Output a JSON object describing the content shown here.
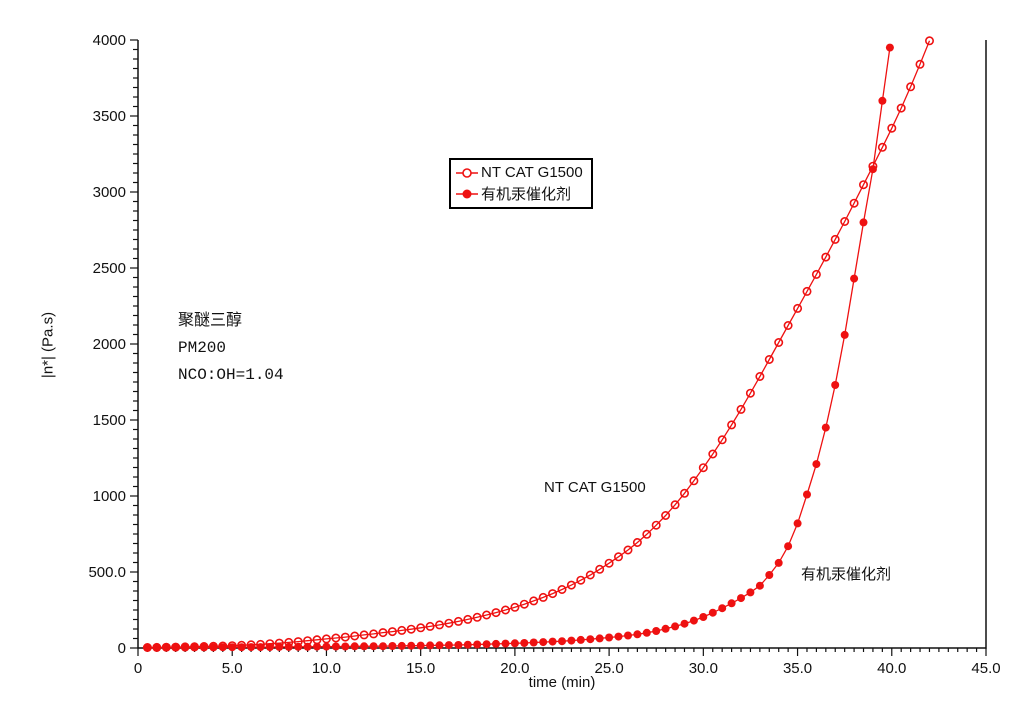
{
  "colors": {
    "series_red": "#ee1111",
    "axis_black": "#111111",
    "background": "#ffffff"
  },
  "axis": {
    "x_label": "time (min)",
    "y_label": "|n*| (Pa.s)"
  },
  "annotation": {
    "line1": "聚醚三醇",
    "line2": "PM200",
    "line3": "NCO:OH=1.04"
  },
  "legend": {
    "entries": [
      {
        "label": "NT CAT G1500",
        "marker": "open-circle"
      },
      {
        "label": "有机汞催化剂",
        "marker": "filled-circle"
      }
    ]
  },
  "curve_labels": [
    {
      "text": "NT CAT G1500"
    },
    {
      "text": "有机汞催化剂"
    }
  ],
  "chart_data": {
    "type": "line",
    "title": "",
    "xlabel": "time (min)",
    "ylabel": "|n*| (Pa.s)",
    "xlim": [
      0,
      45
    ],
    "ylim": [
      0,
      4000
    ],
    "grid": false,
    "legend_position": "upper-center",
    "x_ticks": {
      "values": [
        0,
        5,
        10,
        15,
        20,
        25,
        30,
        35,
        40,
        45
      ],
      "labels": [
        "0",
        "5.0",
        "10.0",
        "15.0",
        "20.0",
        "25.0",
        "30.0",
        "35.0",
        "40.0",
        "45.0"
      ]
    },
    "y_ticks": {
      "values": [
        0,
        500,
        1000,
        1500,
        2000,
        2500,
        3000,
        3500,
        4000
      ],
      "labels": [
        "0",
        "500.0",
        "1000",
        "1500",
        "2000",
        "2500",
        "3000",
        "3500",
        "4000"
      ]
    },
    "x_minor_per_major": 10,
    "y_minor_per_major": 8,
    "series": [
      {
        "name": "NT CAT G1500",
        "marker": "open",
        "x": [
          0.5,
          1,
          1.5,
          2,
          2.5,
          3,
          3.5,
          4,
          4.5,
          5,
          5.5,
          6,
          6.5,
          7,
          7.5,
          8,
          8.5,
          9,
          9.5,
          10,
          10.5,
          11,
          11.5,
          12,
          12.5,
          13,
          13.5,
          14,
          14.5,
          15,
          15.5,
          16,
          16.5,
          17,
          17.5,
          18,
          18.5,
          19,
          19.5,
          20,
          20.5,
          21,
          21.5,
          22,
          22.5,
          23,
          23.5,
          24,
          24.5,
          25,
          25.5,
          26,
          26.5,
          27,
          27.5,
          28,
          28.5,
          29,
          29.5,
          30,
          30.5,
          31,
          31.5,
          32,
          32.5,
          33,
          33.5,
          34,
          34.5,
          35,
          35.5,
          36,
          36.5,
          37,
          37.5,
          38,
          38.5,
          39,
          39.5,
          40,
          40.5,
          41,
          41.5,
          42
        ],
        "y": [
          3,
          4,
          5,
          6,
          7,
          8,
          10,
          11,
          13,
          15,
          18,
          21,
          24,
          28,
          32,
          37,
          42,
          48,
          54,
          60,
          66,
          72,
          79,
          86,
          93,
          101,
          108,
          116,
          124,
          133,
          142,
          152,
          163,
          175,
          188,
          202,
          217,
          233,
          250,
          268,
          288,
          310,
          333,
          358,
          385,
          414,
          446,
          480,
          518,
          558,
          600,
          645,
          694,
          748,
          808,
          872,
          942,
          1018,
          1100,
          1186,
          1276,
          1370,
          1468,
          1570,
          1676,
          1786,
          1898,
          2010,
          2122,
          2234,
          2346,
          2458,
          2572,
          2688,
          2806,
          2926,
          3048,
          3170,
          3294,
          3420,
          3552,
          3692,
          3840,
          3995
        ]
      },
      {
        "name": "有机汞催化剂",
        "marker": "filled",
        "x": [
          0.5,
          1,
          1.5,
          2,
          2.5,
          3,
          3.5,
          4,
          4.5,
          5,
          5.5,
          6,
          6.5,
          7,
          7.5,
          8,
          8.5,
          9,
          9.5,
          10,
          10.5,
          11,
          11.5,
          12,
          12.5,
          13,
          13.5,
          14,
          14.5,
          15,
          15.5,
          16,
          16.5,
          17,
          17.5,
          18,
          18.5,
          19,
          19.5,
          20,
          20.5,
          21,
          21.5,
          22,
          22.5,
          23,
          23.5,
          24,
          24.5,
          25,
          25.5,
          26,
          26.5,
          27,
          27.5,
          28,
          28.5,
          29,
          29.5,
          30,
          30.5,
          31,
          31.5,
          32,
          32.5,
          33,
          33.5,
          34,
          34.5,
          35,
          35.5,
          36,
          36.5,
          37,
          37.5,
          38,
          38.5,
          39,
          39.5,
          39.9
        ],
        "y": [
          2,
          2,
          3,
          3,
          3,
          4,
          4,
          4,
          5,
          5,
          5,
          6,
          6,
          6,
          7,
          7,
          8,
          8,
          9,
          9,
          10,
          10,
          11,
          11,
          12,
          12,
          13,
          14,
          15,
          16,
          17,
          18,
          19,
          20,
          22,
          23,
          25,
          27,
          29,
          31,
          33,
          36,
          39,
          42,
          45,
          49,
          53,
          58,
          63,
          69,
          75,
          82,
          90,
          100,
          112,
          126,
          142,
          160,
          180,
          204,
          232,
          262,
          294,
          328,
          366,
          410,
          480,
          560,
          670,
          820,
          1010,
          1210,
          1450,
          1730,
          2060,
          2430,
          2800,
          3150,
          3600,
          3950
        ]
      }
    ]
  }
}
